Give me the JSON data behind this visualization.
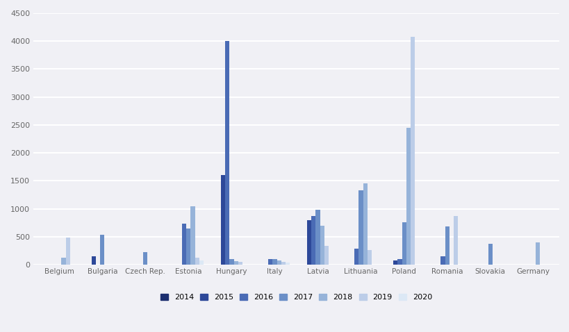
{
  "countries": [
    "Belgium",
    "Bulgaria",
    "Czech Rep.",
    "Estonia",
    "Hungary",
    "Italy",
    "Latvia",
    "Lithuania",
    "Poland",
    "Romania",
    "Slovakia",
    "Germany"
  ],
  "years": [
    "2014",
    "2015",
    "2016",
    "2017",
    "2018",
    "2019",
    "2020"
  ],
  "colors": [
    "#1b2e6f",
    "#2d4899",
    "#4a6bb5",
    "#6b8fc7",
    "#96b3d9",
    "#bccde8",
    "#dce8f5"
  ],
  "data": {
    "Belgium": [
      0,
      0,
      0,
      0,
      130,
      480,
      0
    ],
    "Bulgaria": [
      0,
      150,
      0,
      530,
      0,
      0,
      0
    ],
    "Czech Rep.": [
      0,
      0,
      0,
      220,
      0,
      0,
      0
    ],
    "Estonia": [
      0,
      0,
      730,
      650,
      1050,
      120,
      80
    ],
    "Hungary": [
      0,
      1600,
      4000,
      100,
      60,
      50,
      0
    ],
    "Italy": [
      0,
      0,
      100,
      100,
      80,
      50,
      40
    ],
    "Latvia": [
      0,
      800,
      870,
      980,
      700,
      330,
      0
    ],
    "Lithuania": [
      0,
      0,
      290,
      1330,
      1450,
      260,
      0
    ],
    "Poland": [
      0,
      80,
      100,
      760,
      2450,
      4080,
      0
    ],
    "Romania": [
      0,
      0,
      150,
      680,
      0,
      870,
      0
    ],
    "Slovakia": [
      0,
      0,
      0,
      370,
      0,
      0,
      0
    ],
    "Germany": [
      0,
      0,
      0,
      0,
      400,
      0,
      0
    ]
  },
  "ylim": [
    0,
    4500
  ],
  "yticks": [
    0,
    500,
    1000,
    1500,
    2000,
    2500,
    3000,
    3500,
    4000,
    4500
  ],
  "background_color": "#f0f0f5",
  "grid_color": "#ffffff",
  "bar_width": 0.1,
  "fig_width": 8.2,
  "fig_height": 4.78,
  "dpi": 100
}
